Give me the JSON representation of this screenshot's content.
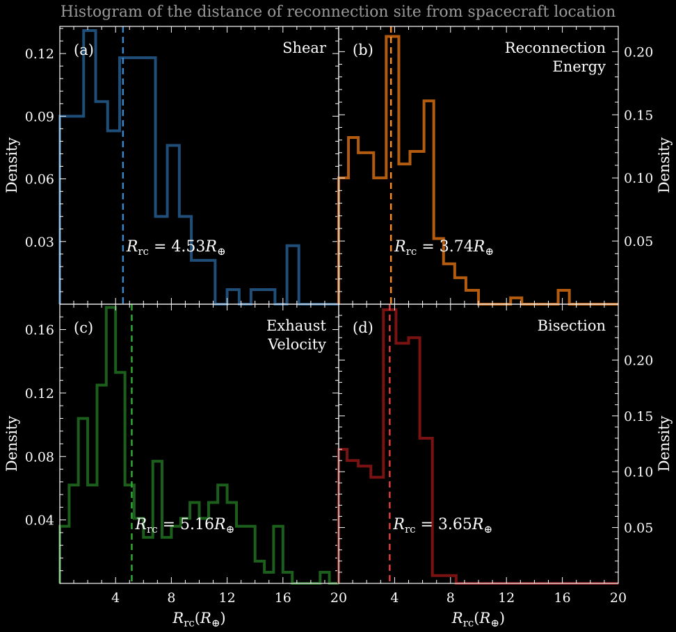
{
  "figure_title": "Histogram of the distance of reconnection site from spacecraft location",
  "chart_data": [
    {
      "type": "histogram",
      "panel": "(a)",
      "label": "Shear",
      "color": "#1f4e79",
      "mean_color": "#3a86c8",
      "mean_value": 4.53,
      "mean_text": "= 4.53",
      "xlim": [
        0,
        20
      ],
      "ylim": [
        0,
        0.133
      ],
      "x_ticks": [
        "4",
        "8",
        "12",
        "16",
        "20"
      ],
      "y_ticks": [
        {
          "value": 0.03,
          "label": "0.03"
        },
        {
          "value": 0.06,
          "label": "0.06"
        },
        {
          "value": 0.09,
          "label": "0.09"
        },
        {
          "value": 0.12,
          "label": "0.12"
        }
      ],
      "ylabel": "Density",
      "ylabel_side": "left",
      "xlabel": "",
      "bin_edges": [
        0,
        0.86,
        1.71,
        2.57,
        3.43,
        4.29,
        5.14,
        6.0,
        6.86,
        7.71,
        8.57,
        9.43,
        10.29,
        11.14,
        12.0,
        12.86,
        13.71,
        14.57,
        15.43,
        16.29,
        17.14,
        18.0,
        18.86,
        19.71,
        20.0
      ],
      "values": [
        0.09,
        0.09,
        0.131,
        0.097,
        0.083,
        0.118,
        0.118,
        0.118,
        0.042,
        0.076,
        0.042,
        0.021,
        0.021,
        0.0,
        0.007,
        0.0,
        0.007,
        0.007,
        0.0,
        0.028,
        0.0,
        0.0,
        0.0,
        0.0
      ]
    },
    {
      "type": "histogram",
      "panel": "(b)",
      "label": "Reconnection\nEnergy",
      "label_lines": [
        "Reconnection",
        "Energy"
      ],
      "color": "#b35c10",
      "mean_color": "#ff8c1a",
      "mean_value": 3.74,
      "mean_text": "= 3.74",
      "xlim": [
        0,
        20
      ],
      "ylim": [
        0,
        0.22
      ],
      "x_ticks": [
        "4",
        "8",
        "12",
        "16",
        "20"
      ],
      "y_ticks": [
        {
          "value": 0.05,
          "label": "0.05"
        },
        {
          "value": 0.1,
          "label": "0.10"
        },
        {
          "value": 0.15,
          "label": "0.15"
        },
        {
          "value": 0.2,
          "label": "0.20"
        }
      ],
      "ylabel": "Density",
      "ylabel_side": "right",
      "xlabel": "",
      "bin_edges": [
        0,
        0.7,
        1.4,
        2.5,
        3.4,
        4.3,
        5.1,
        6.1,
        6.8,
        7.5,
        8.3,
        9.1,
        10.0,
        10.8,
        11.6,
        12.3,
        13.1,
        13.9,
        14.8,
        15.7,
        16.5,
        20.0
      ],
      "values": [
        0.1,
        0.132,
        0.12,
        0.1,
        0.212,
        0.111,
        0.121,
        0.161,
        0.052,
        0.032,
        0.021,
        0.011,
        0.0,
        0.0,
        0.0,
        0.005,
        0.0,
        0.0,
        0.0,
        0.011,
        0.0
      ]
    },
    {
      "type": "histogram",
      "panel": "(c)",
      "label": "Exhaust\nVelocity",
      "label_lines": [
        "Exhaust",
        "Velocity"
      ],
      "color": "#1c5f1c",
      "mean_color": "#2ea82e",
      "mean_value": 5.16,
      "mean_text": "= 5.16",
      "xlim": [
        0,
        20
      ],
      "ylim": [
        0,
        0.176
      ],
      "x_ticks": [
        "4",
        "8",
        "12",
        "16",
        "20"
      ],
      "y_ticks": [
        {
          "value": 0.04,
          "label": "0.04"
        },
        {
          "value": 0.08,
          "label": "0.08"
        },
        {
          "value": 0.12,
          "label": "0.12"
        },
        {
          "value": 0.16,
          "label": "0.16"
        }
      ],
      "ylabel": "Density",
      "ylabel_side": "left",
      "xlabel": "R_rc(R_⊕)",
      "bin_edges": [
        0,
        0.67,
        1.33,
        2.0,
        2.67,
        3.33,
        4.0,
        4.67,
        5.33,
        6.0,
        6.67,
        7.33,
        8.0,
        8.67,
        9.33,
        10.0,
        10.67,
        11.33,
        12.0,
        12.67,
        13.33,
        14.0,
        14.67,
        15.33,
        16.0,
        16.67,
        17.33,
        18.0,
        18.67,
        19.33,
        20.0
      ],
      "values": [
        0.036,
        0.062,
        0.104,
        0.062,
        0.125,
        0.174,
        0.133,
        0.062,
        0.041,
        0.029,
        0.077,
        0.029,
        0.036,
        0.041,
        0.051,
        0.041,
        0.051,
        0.062,
        0.051,
        0.036,
        0.036,
        0.014,
        0.007,
        0.036,
        0.007,
        0.0,
        0.0,
        0.0,
        0.007,
        0.0
      ]
    },
    {
      "type": "histogram",
      "panel": "(d)",
      "label": "Bisection",
      "color": "#7a1212",
      "mean_color": "#e03a3a",
      "mean_value": 3.65,
      "mean_text": "= 3.65",
      "xlim": [
        0,
        20
      ],
      "ylim": [
        0,
        0.25
      ],
      "x_ticks": [
        "4",
        "8",
        "12",
        "16",
        "20"
      ],
      "y_ticks": [
        {
          "value": 0.05,
          "label": "0.05"
        },
        {
          "value": 0.1,
          "label": "0.10"
        },
        {
          "value": 0.15,
          "label": "0.15"
        },
        {
          "value": 0.2,
          "label": "0.20"
        }
      ],
      "ylabel": "Density",
      "ylabel_side": "right",
      "xlabel": "R_rc(R_⊕)",
      "bin_edges": [
        0,
        0.6,
        1.4,
        2.3,
        3.2,
        4.1,
        5.0,
        5.8,
        6.7,
        8.4,
        20.0
      ],
      "values": [
        0.12,
        0.11,
        0.105,
        0.095,
        0.245,
        0.215,
        0.22,
        0.13,
        0.007,
        0.0
      ]
    }
  ],
  "xlabel_text": {
    "R": "R",
    "rc": "rc",
    "paren_open": "(",
    "Rearth": "R",
    "earth": "⊕",
    "paren_close": ")"
  },
  "mean_label": {
    "R": "R",
    "rc": "rc",
    "Rearth": "R",
    "earth": "⊕"
  }
}
